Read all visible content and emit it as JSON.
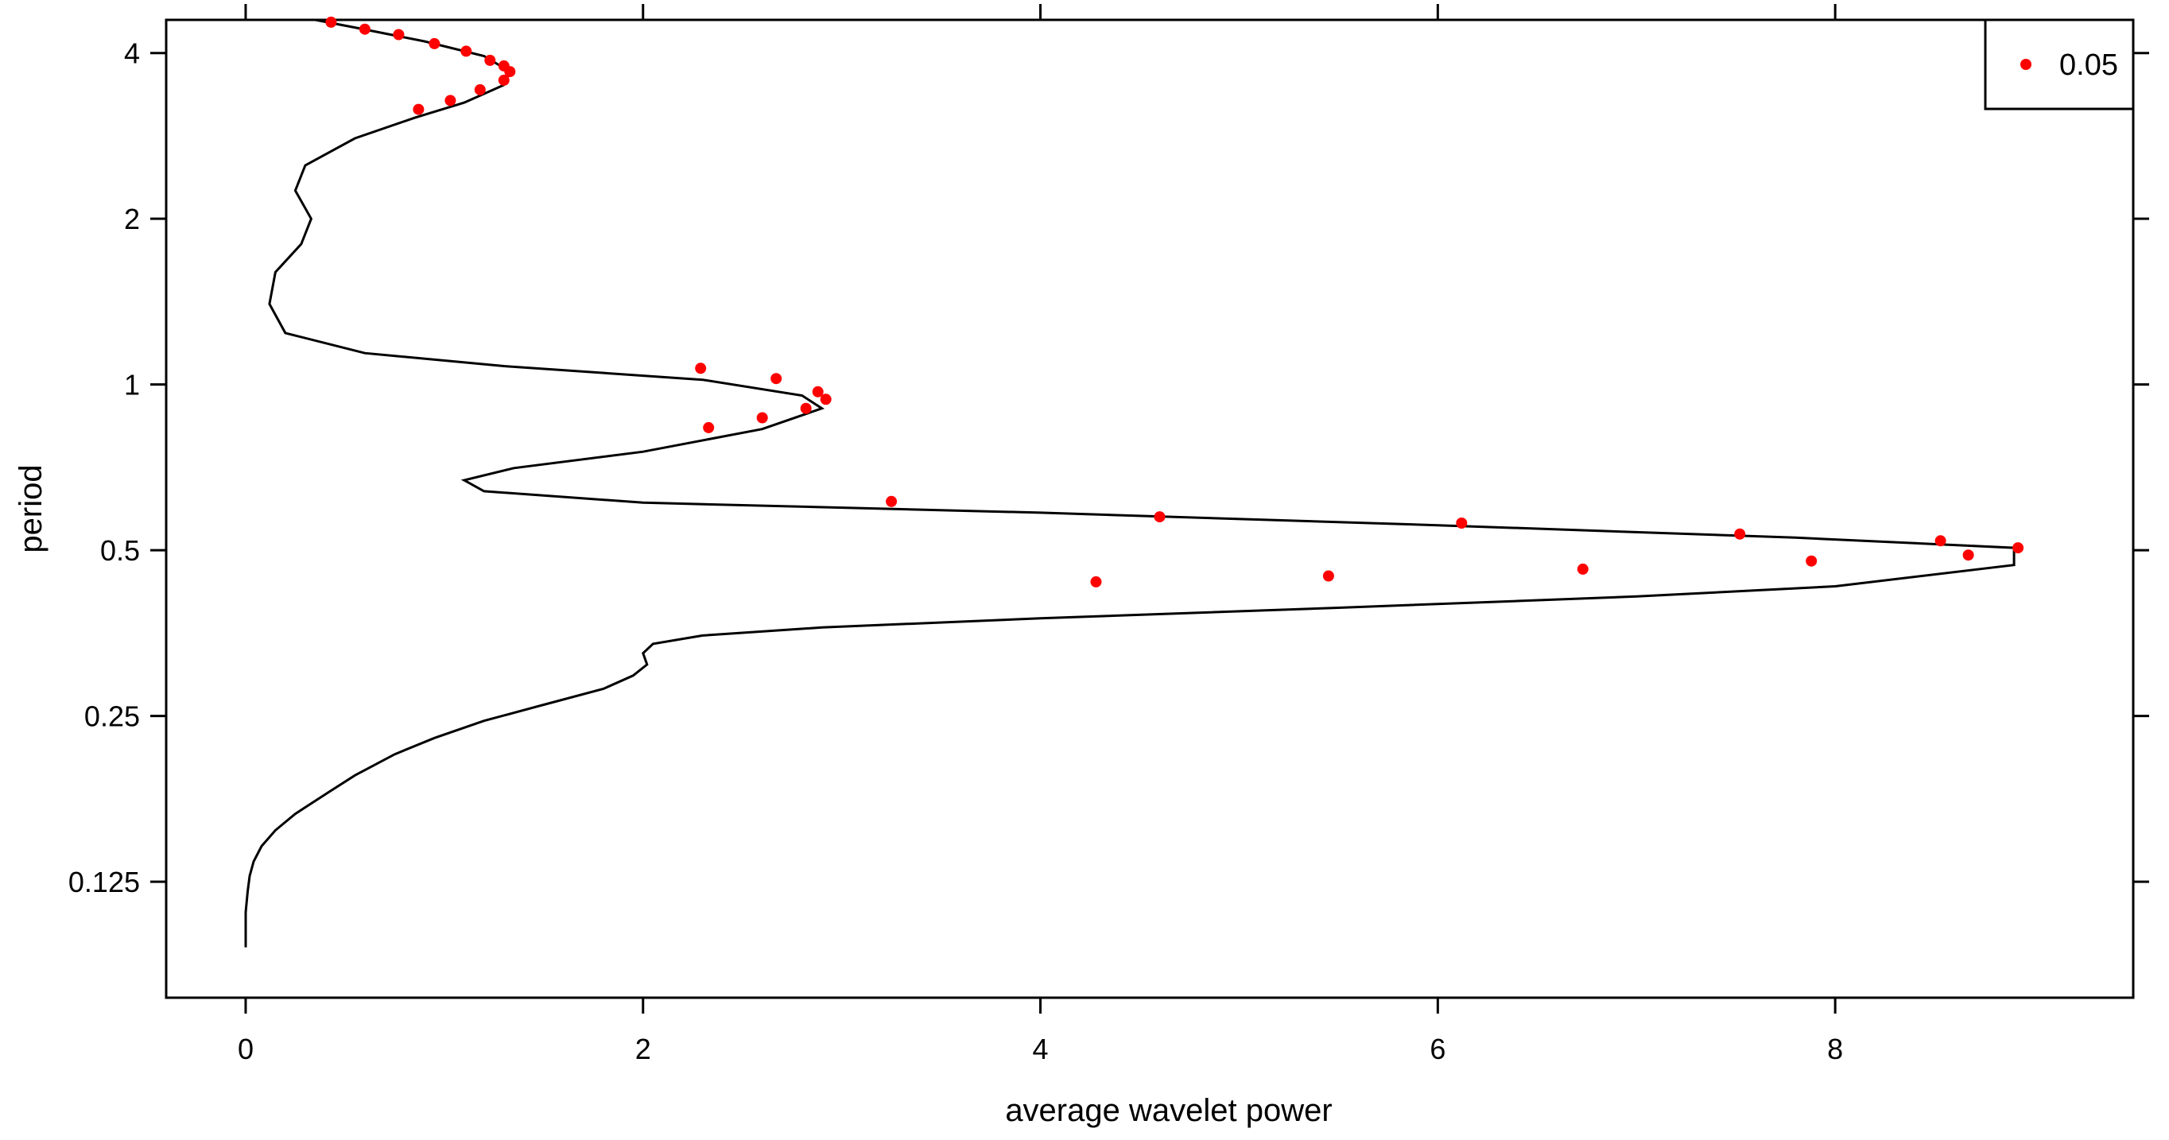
{
  "chart_data": {
    "type": "line",
    "xlabel": "average wavelet power",
    "ylabel": "period",
    "xlim": [
      -0.4,
      9.5
    ],
    "ylim_log2": [
      -3.7,
      2.2
    ],
    "y_scale": "log2",
    "x_ticks": [
      0,
      2,
      4,
      6,
      8
    ],
    "x_tick_labels": [
      "0",
      "2",
      "4",
      "6",
      "8"
    ],
    "y_ticks": [
      0.125,
      0.25,
      0.5,
      1,
      2,
      4
    ],
    "y_tick_labels": [
      "0.125",
      "0.25",
      "0.5",
      "1",
      "2",
      "4"
    ],
    "grid": false,
    "legend": {
      "position": "top-right",
      "entries": [
        {
          "label": "0.05",
          "color": "#ff0000",
          "marker": "point"
        }
      ]
    },
    "line_color": "#000000",
    "marker_color": "#ff0000",
    "series": [
      {
        "style": "line",
        "points": [
          [
            0.0,
            0.095
          ],
          [
            0.0,
            0.1
          ],
          [
            0.0,
            0.11
          ],
          [
            0.01,
            0.12
          ],
          [
            0.02,
            0.128
          ],
          [
            0.04,
            0.136
          ],
          [
            0.08,
            0.145
          ],
          [
            0.15,
            0.155
          ],
          [
            0.25,
            0.166
          ],
          [
            0.42,
            0.182
          ],
          [
            0.55,
            0.195
          ],
          [
            0.75,
            0.213
          ],
          [
            0.95,
            0.228
          ],
          [
            1.2,
            0.245
          ],
          [
            1.5,
            0.262
          ],
          [
            1.8,
            0.28
          ],
          [
            1.95,
            0.296
          ],
          [
            2.02,
            0.31
          ],
          [
            2.0,
            0.325
          ],
          [
            2.05,
            0.338
          ],
          [
            2.3,
            0.35
          ],
          [
            2.9,
            0.362
          ],
          [
            4.0,
            0.376
          ],
          [
            5.5,
            0.393
          ],
          [
            7.0,
            0.412
          ],
          [
            8.0,
            0.43
          ],
          [
            8.9,
            0.47
          ],
          [
            8.9,
            0.505
          ],
          [
            7.8,
            0.527
          ],
          [
            6.0,
            0.555
          ],
          [
            4.0,
            0.585
          ],
          [
            2.0,
            0.61
          ],
          [
            1.2,
            0.64
          ],
          [
            1.1,
            0.67
          ],
          [
            1.35,
            0.705
          ],
          [
            2.0,
            0.755
          ],
          [
            2.6,
            0.83
          ],
          [
            2.9,
            0.905
          ],
          [
            2.8,
            0.955
          ],
          [
            2.3,
            1.02
          ],
          [
            1.3,
            1.08
          ],
          [
            0.6,
            1.14
          ],
          [
            0.2,
            1.24
          ],
          [
            0.12,
            1.4
          ],
          [
            0.15,
            1.6
          ],
          [
            0.28,
            1.8
          ],
          [
            0.33,
            2.0
          ],
          [
            0.25,
            2.25
          ],
          [
            0.3,
            2.5
          ],
          [
            0.55,
            2.8
          ],
          [
            0.85,
            3.05
          ],
          [
            1.1,
            3.25
          ],
          [
            1.3,
            3.5
          ],
          [
            1.33,
            3.7
          ],
          [
            1.2,
            3.95
          ],
          [
            0.9,
            4.2
          ],
          [
            0.55,
            4.45
          ],
          [
            0.35,
            4.65
          ],
          [
            0.25,
            4.8
          ]
        ]
      },
      {
        "style": "points",
        "points": [
          [
            0.43,
            4.55
          ],
          [
            0.6,
            4.42
          ],
          [
            0.77,
            4.32
          ],
          [
            0.95,
            4.16
          ],
          [
            1.11,
            4.03
          ],
          [
            1.23,
            3.88
          ],
          [
            1.3,
            3.79
          ],
          [
            1.33,
            3.7
          ],
          [
            1.3,
            3.57
          ],
          [
            1.18,
            3.43
          ],
          [
            1.03,
            3.28
          ],
          [
            0.87,
            3.16
          ],
          [
            2.29,
            1.07
          ],
          [
            2.67,
            1.025
          ],
          [
            2.88,
            0.97
          ],
          [
            2.92,
            0.94
          ],
          [
            2.82,
            0.905
          ],
          [
            2.6,
            0.87
          ],
          [
            2.33,
            0.835
          ],
          [
            3.25,
            0.613
          ],
          [
            4.6,
            0.575
          ],
          [
            6.12,
            0.56
          ],
          [
            7.52,
            0.535
          ],
          [
            8.53,
            0.52
          ],
          [
            8.92,
            0.505
          ],
          [
            8.67,
            0.49
          ],
          [
            7.88,
            0.478
          ],
          [
            6.73,
            0.462
          ],
          [
            5.45,
            0.449
          ],
          [
            4.28,
            0.438
          ]
        ]
      }
    ]
  }
}
